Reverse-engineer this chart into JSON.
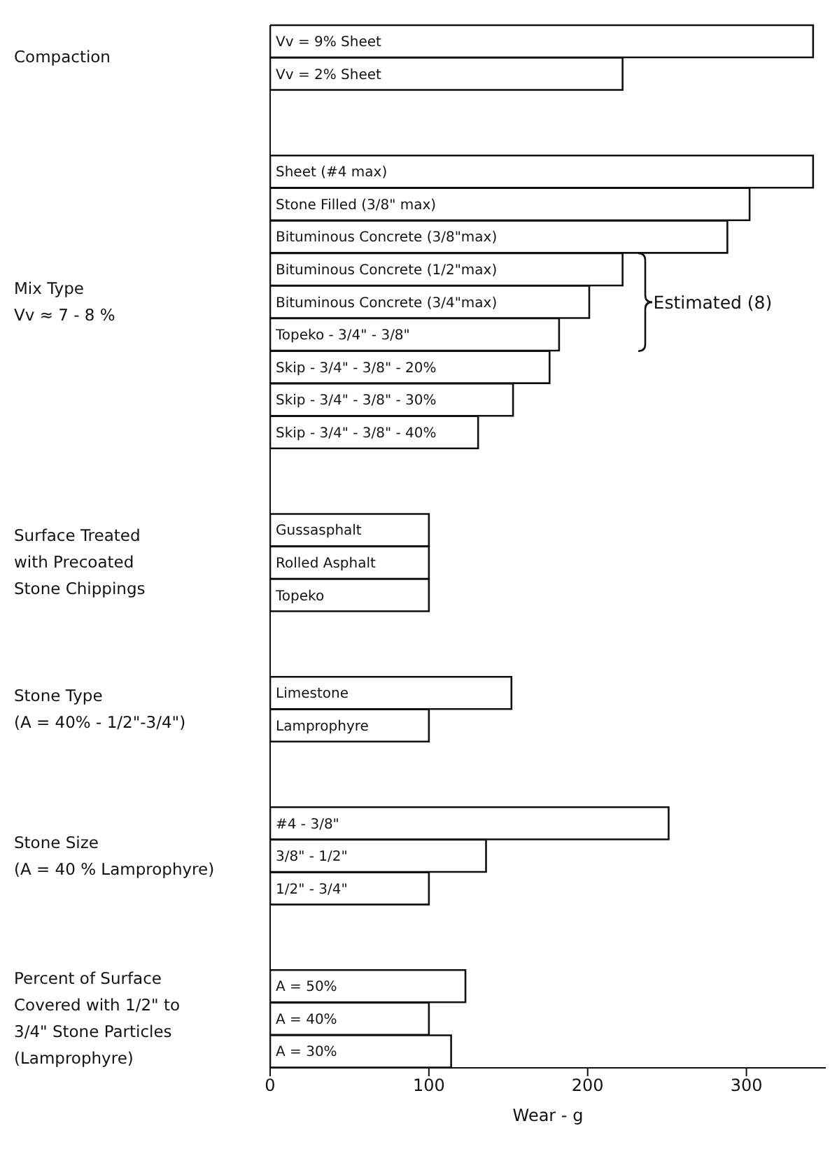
{
  "chart_data": {
    "type": "bar",
    "orientation": "horizontal",
    "xlabel": "Wear - g",
    "xlim": [
      0,
      350
    ],
    "xticks": [
      0,
      100,
      200,
      300
    ],
    "color": "#ffffff",
    "categories": [
      "Vv = 9%  Sheet",
      "Vv = 2% Sheet",
      null,
      null,
      "Sheet (#4 max)",
      "Stone Filled (3/8\" max)",
      "Bituminous Concrete (3/8\"max)",
      "Bituminous Concrete (1/2\"max)",
      "Bituminous Concrete (3/4\"max)",
      "Topeko - 3/4\" - 3/8\"",
      "Skip - 3/4\" - 3/8\" - 20%",
      "Skip - 3/4\" - 3/8\" - 30%",
      "Skip - 3/4\" - 3/8\" - 40%",
      null,
      null,
      "Gussasphalt",
      "Rolled Asphalt",
      "Topeko",
      null,
      null,
      "Limestone",
      "Lamprophyre",
      null,
      null,
      "#4 - 3/8\"",
      "3/8\" - 1/2\"",
      "1/2\" - 3/4\"",
      null,
      null,
      "A = 50%",
      "A = 40%",
      "A = 30%"
    ],
    "values": [
      342,
      222,
      null,
      null,
      342,
      302,
      288,
      222,
      201,
      182,
      176,
      153,
      131,
      null,
      null,
      100,
      100,
      100,
      null,
      null,
      152,
      100,
      null,
      null,
      251,
      136,
      100,
      null,
      null,
      123,
      100,
      114
    ],
    "annotations": [
      "Compaction",
      "Mix Type\nVv ≈ 7 - 8 %",
      "Surface Treated\nwith Precoated\nStone Chippings",
      "Stone Type\n(A = 40% - 1/2\"-3/4\")",
      "Stone Size\n(A = 40 % Lamprophyre)",
      "Percent of Surface\nCovered with 1/2\" to\n3/4\" Stone Particles\n(Lamprophyre)",
      "Estimated (8)"
    ]
  }
}
